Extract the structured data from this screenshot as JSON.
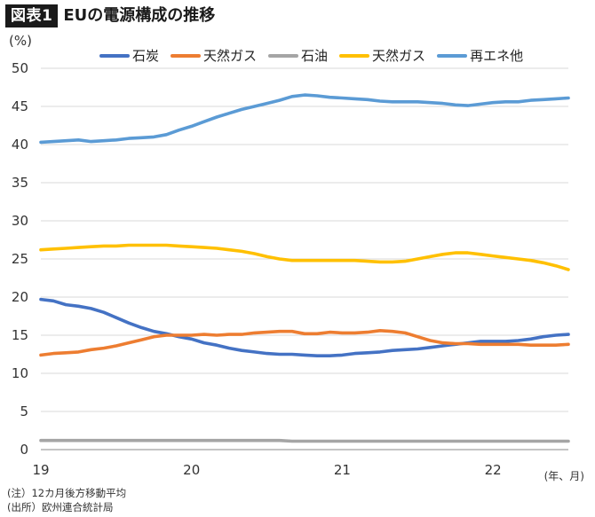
{
  "header": {
    "figure_label": "図表1",
    "title": "EUの電源構成の推移"
  },
  "chart_data": {
    "type": "line",
    "title": "EUの電源構成の推移",
    "ylabel": "(%)",
    "xlabel": "(年、月)",
    "ylim": [
      0,
      50
    ],
    "xlim": [
      2019.0,
      2022.5
    ],
    "y_ticks": [
      0,
      5,
      10,
      15,
      20,
      25,
      30,
      35,
      40,
      45,
      50
    ],
    "x_ticks": [
      {
        "value": 2019,
        "label": "19"
      },
      {
        "value": 2020,
        "label": "20"
      },
      {
        "value": 2021,
        "label": "21"
      },
      {
        "value": 2022,
        "label": "22"
      }
    ],
    "grid": "horizontal",
    "legend_position": "top",
    "x": [
      2019.0,
      2019.083,
      2019.167,
      2019.25,
      2019.333,
      2019.417,
      2019.5,
      2019.583,
      2019.667,
      2019.75,
      2019.833,
      2019.917,
      2020.0,
      2020.083,
      2020.167,
      2020.25,
      2020.333,
      2020.417,
      2020.5,
      2020.583,
      2020.667,
      2020.75,
      2020.833,
      2020.917,
      2021.0,
      2021.083,
      2021.167,
      2021.25,
      2021.333,
      2021.417,
      2021.5,
      2021.583,
      2021.667,
      2021.75,
      2021.833,
      2021.917,
      2022.0,
      2022.083,
      2022.167,
      2022.25,
      2022.333,
      2022.417,
      2022.5
    ],
    "series": [
      {
        "name": "石炭",
        "color": "#4472c4",
        "values": [
          19.7,
          19.5,
          19.0,
          18.8,
          18.5,
          18.0,
          17.3,
          16.6,
          16.0,
          15.5,
          15.2,
          14.8,
          14.5,
          14.0,
          13.7,
          13.3,
          13.0,
          12.8,
          12.6,
          12.5,
          12.5,
          12.4,
          12.3,
          12.3,
          12.4,
          12.6,
          12.7,
          12.8,
          13.0,
          13.1,
          13.2,
          13.4,
          13.6,
          13.8,
          14.0,
          14.2,
          14.2,
          14.2,
          14.3,
          14.5,
          14.8,
          15.0,
          15.1
        ]
      },
      {
        "name": "天然ガス",
        "color": "#ed7d31",
        "values": [
          12.4,
          12.6,
          12.7,
          12.8,
          13.1,
          13.3,
          13.6,
          14.0,
          14.4,
          14.8,
          15.0,
          15.0,
          15.0,
          15.1,
          15.0,
          15.1,
          15.1,
          15.3,
          15.4,
          15.5,
          15.5,
          15.2,
          15.2,
          15.4,
          15.3,
          15.3,
          15.4,
          15.6,
          15.5,
          15.3,
          14.8,
          14.3,
          14.0,
          13.9,
          13.9,
          13.8,
          13.8,
          13.8,
          13.8,
          13.7,
          13.7,
          13.7,
          13.8
        ]
      },
      {
        "name": "石油",
        "color": "#a5a5a5",
        "values": [
          1.2,
          1.2,
          1.2,
          1.2,
          1.2,
          1.2,
          1.2,
          1.2,
          1.2,
          1.2,
          1.2,
          1.2,
          1.2,
          1.2,
          1.2,
          1.2,
          1.2,
          1.2,
          1.2,
          1.2,
          1.1,
          1.1,
          1.1,
          1.1,
          1.1,
          1.1,
          1.1,
          1.1,
          1.1,
          1.1,
          1.1,
          1.1,
          1.1,
          1.1,
          1.1,
          1.1,
          1.1,
          1.1,
          1.1,
          1.1,
          1.1,
          1.1,
          1.1
        ]
      },
      {
        "name": "天然ガス",
        "color": "#ffc000",
        "values": [
          26.2,
          26.3,
          26.4,
          26.5,
          26.6,
          26.7,
          26.7,
          26.8,
          26.8,
          26.8,
          26.8,
          26.7,
          26.6,
          26.5,
          26.4,
          26.2,
          26.0,
          25.7,
          25.3,
          25.0,
          24.8,
          24.8,
          24.8,
          24.8,
          24.8,
          24.8,
          24.7,
          24.6,
          24.6,
          24.7,
          25.0,
          25.3,
          25.6,
          25.8,
          25.8,
          25.6,
          25.4,
          25.2,
          25.0,
          24.8,
          24.5,
          24.1,
          23.6
        ]
      },
      {
        "name": "再エネ他",
        "color": "#5b9bd5",
        "values": [
          40.3,
          40.4,
          40.5,
          40.6,
          40.4,
          40.5,
          40.6,
          40.8,
          40.9,
          41.0,
          41.3,
          41.9,
          42.4,
          43.0,
          43.6,
          44.1,
          44.6,
          45.0,
          45.4,
          45.8,
          46.3,
          46.5,
          46.4,
          46.2,
          46.1,
          46.0,
          45.9,
          45.7,
          45.6,
          45.6,
          45.6,
          45.5,
          45.4,
          45.2,
          45.1,
          45.3,
          45.5,
          45.6,
          45.6,
          45.8,
          45.9,
          46.0,
          46.1
        ]
      }
    ]
  },
  "notes": {
    "line1": "(注）12カ月後方移動平均",
    "line2": "(出所）欧州連合統計局"
  }
}
